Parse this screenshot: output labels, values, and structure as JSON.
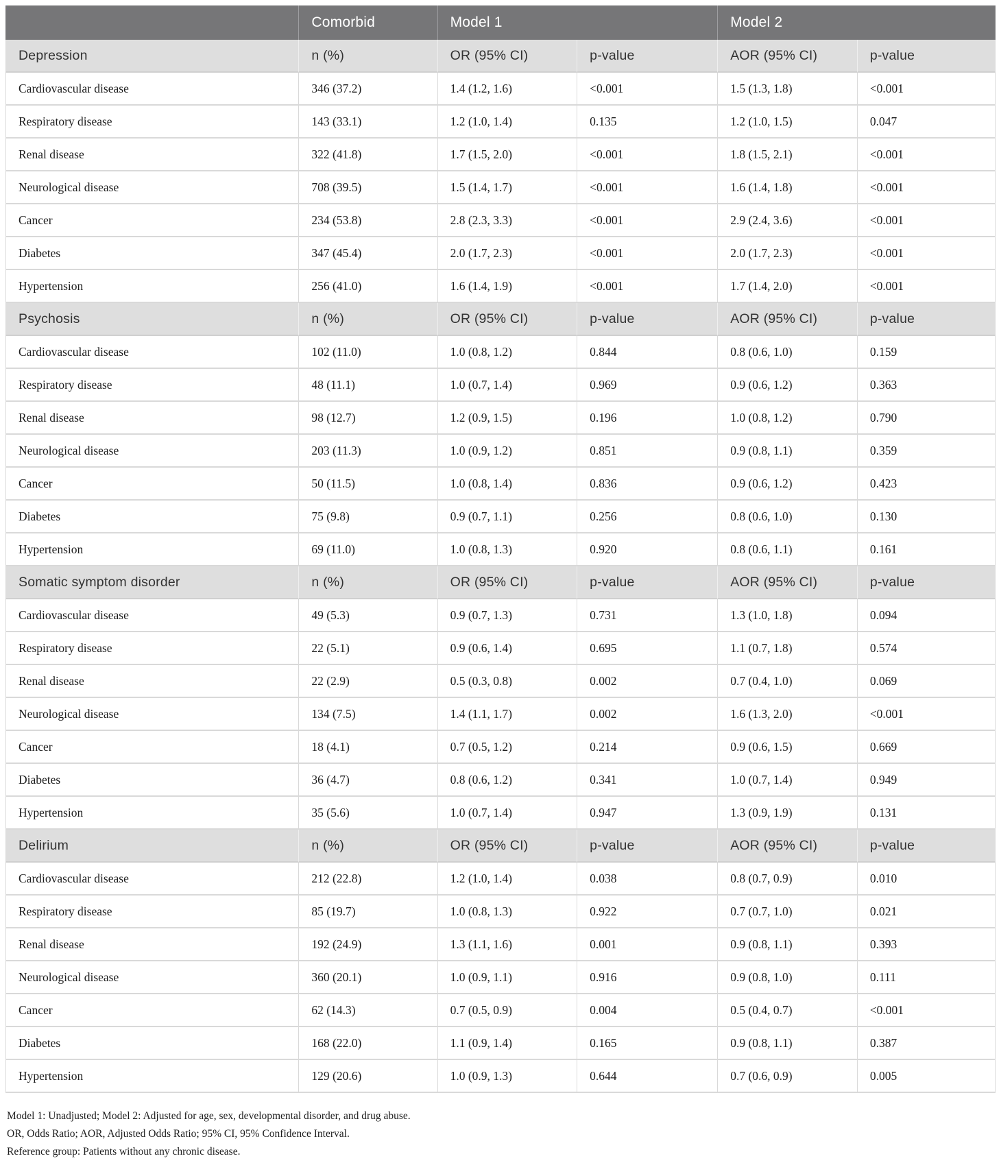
{
  "colors": {
    "header_bg": "#767678",
    "header_text": "#ffffff",
    "section_bg": "#dedede",
    "border": "#d9d9d9"
  },
  "table": {
    "top_header": {
      "blank": "",
      "comorbid": "Comorbid",
      "model1": "Model 1",
      "model2": "Model 2"
    },
    "sub_headers": [
      "n (%)",
      "OR (95% CI)",
      "p-value",
      "AOR (95% CI)",
      "p-value"
    ],
    "sections": [
      {
        "title": "Depression",
        "rows": [
          {
            "label": "Cardiovascular disease",
            "n": "346 (37.2)",
            "or": "1.4 (1.2, 1.6)",
            "p1": "<0.001",
            "aor": "1.5 (1.3, 1.8)",
            "p2": "<0.001"
          },
          {
            "label": "Respiratory disease",
            "n": "143 (33.1)",
            "or": "1.2 (1.0, 1.4)",
            "p1": "0.135",
            "aor": "1.2 (1.0, 1.5)",
            "p2": "0.047"
          },
          {
            "label": "Renal disease",
            "n": "322 (41.8)",
            "or": "1.7 (1.5, 2.0)",
            "p1": "<0.001",
            "aor": "1.8 (1.5, 2.1)",
            "p2": "<0.001"
          },
          {
            "label": "Neurological disease",
            "n": "708 (39.5)",
            "or": "1.5 (1.4, 1.7)",
            "p1": "<0.001",
            "aor": "1.6 (1.4, 1.8)",
            "p2": "<0.001"
          },
          {
            "label": "Cancer",
            "n": "234 (53.8)",
            "or": "2.8 (2.3, 3.3)",
            "p1": "<0.001",
            "aor": "2.9 (2.4, 3.6)",
            "p2": "<0.001"
          },
          {
            "label": "Diabetes",
            "n": "347 (45.4)",
            "or": "2.0 (1.7, 2.3)",
            "p1": "<0.001",
            "aor": "2.0 (1.7, 2.3)",
            "p2": "<0.001"
          },
          {
            "label": "Hypertension",
            "n": "256 (41.0)",
            "or": "1.6 (1.4, 1.9)",
            "p1": "<0.001",
            "aor": "1.7 (1.4, 2.0)",
            "p2": "<0.001"
          }
        ]
      },
      {
        "title": "Psychosis",
        "rows": [
          {
            "label": "Cardiovascular disease",
            "n": "102 (11.0)",
            "or": "1.0 (0.8, 1.2)",
            "p1": "0.844",
            "aor": "0.8 (0.6, 1.0)",
            "p2": "0.159"
          },
          {
            "label": "Respiratory disease",
            "n": "48 (11.1)",
            "or": "1.0 (0.7, 1.4)",
            "p1": "0.969",
            "aor": "0.9 (0.6, 1.2)",
            "p2": "0.363"
          },
          {
            "label": "Renal disease",
            "n": "98 (12.7)",
            "or": "1.2 (0.9, 1.5)",
            "p1": "0.196",
            "aor": "1.0 (0.8, 1.2)",
            "p2": "0.790"
          },
          {
            "label": "Neurological disease",
            "n": "203 (11.3)",
            "or": "1.0 (0.9, 1.2)",
            "p1": "0.851",
            "aor": "0.9 (0.8, 1.1)",
            "p2": "0.359"
          },
          {
            "label": "Cancer",
            "n": "50 (11.5)",
            "or": "1.0 (0.8, 1.4)",
            "p1": "0.836",
            "aor": "0.9 (0.6, 1.2)",
            "p2": "0.423"
          },
          {
            "label": "Diabetes",
            "n": "75 (9.8)",
            "or": "0.9 (0.7, 1.1)",
            "p1": "0.256",
            "aor": "0.8 (0.6, 1.0)",
            "p2": "0.130"
          },
          {
            "label": "Hypertension",
            "n": "69 (11.0)",
            "or": "1.0 (0.8, 1.3)",
            "p1": "0.920",
            "aor": "0.8 (0.6, 1.1)",
            "p2": "0.161"
          }
        ]
      },
      {
        "title": "Somatic symptom disorder",
        "rows": [
          {
            "label": "Cardiovascular disease",
            "n": "49 (5.3)",
            "or": "0.9 (0.7, 1.3)",
            "p1": "0.731",
            "aor": "1.3 (1.0, 1.8)",
            "p2": "0.094"
          },
          {
            "label": "Respiratory disease",
            "n": "22 (5.1)",
            "or": "0.9 (0.6, 1.4)",
            "p1": "0.695",
            "aor": "1.1 (0.7, 1.8)",
            "p2": "0.574"
          },
          {
            "label": "Renal disease",
            "n": "22 (2.9)",
            "or": "0.5 (0.3, 0.8)",
            "p1": "0.002",
            "aor": "0.7 (0.4, 1.0)",
            "p2": "0.069"
          },
          {
            "label": "Neurological disease",
            "n": "134 (7.5)",
            "or": "1.4 (1.1, 1.7)",
            "p1": "0.002",
            "aor": "1.6 (1.3, 2.0)",
            "p2": "<0.001"
          },
          {
            "label": "Cancer",
            "n": "18 (4.1)",
            "or": "0.7 (0.5, 1.2)",
            "p1": "0.214",
            "aor": "0.9 (0.6, 1.5)",
            "p2": "0.669"
          },
          {
            "label": "Diabetes",
            "n": "36 (4.7)",
            "or": "0.8 (0.6, 1.2)",
            "p1": "0.341",
            "aor": "1.0 (0.7, 1.4)",
            "p2": "0.949"
          },
          {
            "label": "Hypertension",
            "n": "35 (5.6)",
            "or": "1.0 (0.7, 1.4)",
            "p1": "0.947",
            "aor": "1.3 (0.9, 1.9)",
            "p2": "0.131"
          }
        ]
      },
      {
        "title": "Delirium",
        "rows": [
          {
            "label": "Cardiovascular disease",
            "n": "212 (22.8)",
            "or": "1.2 (1.0, 1.4)",
            "p1": "0.038",
            "aor": "0.8 (0.7, 0.9)",
            "p2": "0.010"
          },
          {
            "label": "Respiratory disease",
            "n": "85 (19.7)",
            "or": "1.0 (0.8, 1.3)",
            "p1": "0.922",
            "aor": "0.7 (0.7, 1.0)",
            "p2": "0.021"
          },
          {
            "label": "Renal disease",
            "n": "192 (24.9)",
            "or": "1.3 (1.1, 1.6)",
            "p1": "0.001",
            "aor": "0.9 (0.8, 1.1)",
            "p2": "0.393"
          },
          {
            "label": "Neurological disease",
            "n": "360 (20.1)",
            "or": "1.0 (0.9, 1.1)",
            "p1": "0.916",
            "aor": "0.9 (0.8, 1.0)",
            "p2": "0.111"
          },
          {
            "label": "Cancer",
            "n": "62 (14.3)",
            "or": "0.7 (0.5, 0.9)",
            "p1": "0.004",
            "aor": "0.5 (0.4, 0.7)",
            "p2": "<0.001"
          },
          {
            "label": "Diabetes",
            "n": "168 (22.0)",
            "or": "1.1 (0.9, 1.4)",
            "p1": "0.165",
            "aor": "0.9 (0.8, 1.1)",
            "p2": "0.387"
          },
          {
            "label": "Hypertension",
            "n": "129 (20.6)",
            "or": "1.0 (0.9, 1.3)",
            "p1": "0.644",
            "aor": "0.7 (0.6, 0.9)",
            "p2": "0.005"
          }
        ]
      }
    ]
  },
  "footnotes": [
    "Model 1: Unadjusted; Model 2: Adjusted for age, sex, developmental disorder, and drug abuse.",
    "OR, Odds Ratio; AOR, Adjusted Odds Ratio; 95% CI, 95% Confidence Interval.",
    "Reference group: Patients without any chronic disease."
  ]
}
